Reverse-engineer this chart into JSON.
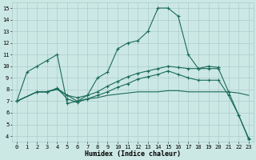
{
  "xlabel": "Humidex (Indice chaleur)",
  "bg_color": "#cce8e4",
  "line_color": "#1a6b5a",
  "grid_color": "#aacccc",
  "xlim": [
    -0.5,
    23.5
  ],
  "ylim": [
    3.5,
    15.5
  ],
  "xticks": [
    0,
    1,
    2,
    3,
    4,
    5,
    6,
    7,
    8,
    9,
    10,
    11,
    12,
    13,
    14,
    15,
    16,
    17,
    18,
    19,
    20,
    21,
    22,
    23
  ],
  "yticks": [
    4,
    5,
    6,
    7,
    8,
    9,
    10,
    11,
    12,
    13,
    14,
    15
  ],
  "lines": [
    {
      "x": [
        0,
        1,
        2,
        3,
        4,
        5,
        6,
        7,
        8,
        9,
        10,
        11,
        12,
        13,
        14,
        15,
        16,
        17,
        18,
        19,
        20,
        21,
        22,
        23
      ],
      "y": [
        7.0,
        9.5,
        10.0,
        10.5,
        11.0,
        6.8,
        7.0,
        7.5,
        9.0,
        9.5,
        11.5,
        12.0,
        12.2,
        13.0,
        15.0,
        15.0,
        14.3,
        11.0,
        9.8,
        9.8,
        9.8,
        7.8,
        5.8,
        3.7
      ],
      "marker": "+"
    },
    {
      "x": [
        0,
        2,
        3,
        4,
        5,
        6,
        7,
        8,
        9,
        10,
        11,
        12,
        13,
        14,
        15,
        16,
        17,
        18,
        19,
        20
      ],
      "y": [
        7.0,
        7.8,
        7.8,
        8.1,
        7.5,
        7.3,
        7.5,
        7.8,
        8.3,
        8.7,
        9.1,
        9.4,
        9.6,
        9.8,
        10.0,
        9.9,
        9.8,
        9.8,
        10.0,
        9.9
      ],
      "marker": "+"
    },
    {
      "x": [
        0,
        2,
        3,
        4,
        5,
        6,
        7,
        8,
        9,
        10,
        11,
        12,
        13,
        14,
        15,
        16,
        17,
        18,
        19,
        20,
        21,
        22,
        23
      ],
      "y": [
        7.0,
        7.8,
        7.8,
        8.1,
        7.2,
        6.9,
        7.2,
        7.5,
        7.8,
        8.2,
        8.5,
        8.9,
        9.1,
        9.3,
        9.6,
        9.3,
        9.0,
        8.8,
        8.8,
        8.8,
        7.5,
        5.8,
        3.8
      ],
      "marker": "+"
    },
    {
      "x": [
        0,
        2,
        3,
        4,
        5,
        6,
        7,
        8,
        9,
        10,
        11,
        12,
        13,
        14,
        15,
        16,
        17,
        18,
        19,
        20,
        21,
        22,
        23
      ],
      "y": [
        7.0,
        7.8,
        7.8,
        8.0,
        7.5,
        7.0,
        7.2,
        7.3,
        7.5,
        7.6,
        7.7,
        7.8,
        7.8,
        7.8,
        7.9,
        7.9,
        7.8,
        7.8,
        7.8,
        7.8,
        7.8,
        7.7,
        7.5
      ],
      "marker": null
    }
  ]
}
